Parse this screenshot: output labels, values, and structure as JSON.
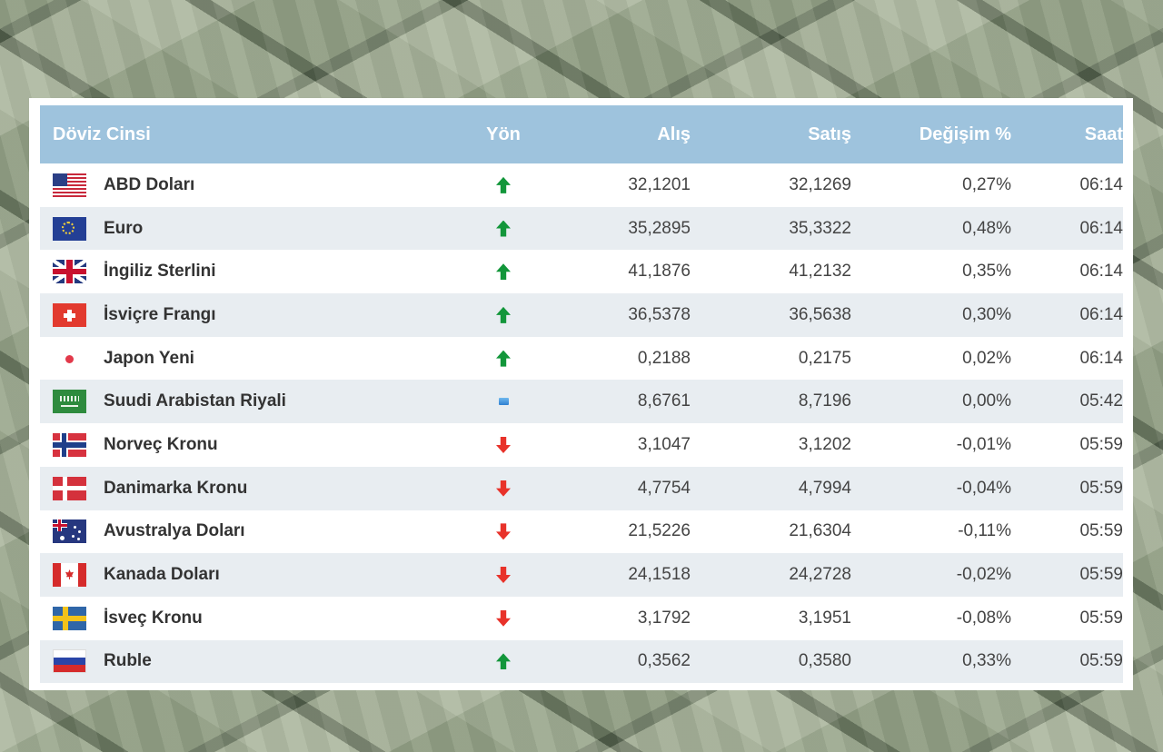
{
  "table": {
    "headers": {
      "currency": "Döviz Cinsi",
      "direction": "Yön",
      "buy": "Alış",
      "sell": "Satış",
      "change": "Değişim %",
      "time": "Saat"
    },
    "rows": [
      {
        "flag": "us-flag-icon",
        "name": "ABD Doları",
        "direction": "up",
        "buy": "32,1201",
        "sell": "32,1269",
        "change": "0,27%",
        "time": "06:14"
      },
      {
        "flag": "eu-flag-icon",
        "name": "Euro",
        "direction": "up",
        "buy": "35,2895",
        "sell": "35,3322",
        "change": "0,48%",
        "time": "06:14"
      },
      {
        "flag": "gb-flag-icon",
        "name": "İngiliz Sterlini",
        "direction": "up",
        "buy": "41,1876",
        "sell": "41,2132",
        "change": "0,35%",
        "time": "06:14"
      },
      {
        "flag": "ch-flag-icon",
        "name": "İsviçre Frangı",
        "direction": "up",
        "buy": "36,5378",
        "sell": "36,5638",
        "change": "0,30%",
        "time": "06:14"
      },
      {
        "flag": "jp-flag-icon",
        "name": "Japon Yeni",
        "direction": "up",
        "buy": "0,2188",
        "sell": "0,2175",
        "change": "0,02%",
        "time": "06:14"
      },
      {
        "flag": "sa-flag-icon",
        "name": "Suudi Arabistan Riyali",
        "direction": "flat",
        "buy": "8,6761",
        "sell": "8,7196",
        "change": "0,00%",
        "time": "05:42"
      },
      {
        "flag": "no-flag-icon",
        "name": "Norveç Kronu",
        "direction": "down",
        "buy": "3,1047",
        "sell": "3,1202",
        "change": "-0,01%",
        "time": "05:59"
      },
      {
        "flag": "dk-flag-icon",
        "name": "Danimarka Kronu",
        "direction": "down",
        "buy": "4,7754",
        "sell": "4,7994",
        "change": "-0,04%",
        "time": "05:59"
      },
      {
        "flag": "au-flag-icon",
        "name": "Avustralya Doları",
        "direction": "down",
        "buy": "21,5226",
        "sell": "21,6304",
        "change": "-0,11%",
        "time": "05:59"
      },
      {
        "flag": "ca-flag-icon",
        "name": "Kanada Doları",
        "direction": "down",
        "buy": "24,1518",
        "sell": "24,2728",
        "change": "-0,02%",
        "time": "05:59"
      },
      {
        "flag": "se-flag-icon",
        "name": "İsveç Kronu",
        "direction": "down",
        "buy": "3,1792",
        "sell": "3,1951",
        "change": "-0,08%",
        "time": "05:59"
      },
      {
        "flag": "ru-flag-icon",
        "name": "Ruble",
        "direction": "up",
        "buy": "0,3562",
        "sell": "0,3580",
        "change": "0,33%",
        "time": "05:59"
      }
    ]
  },
  "colors": {
    "header_bg": "#9ec3dd",
    "alt_row_bg": "#e8edf1",
    "up": "#12963a",
    "down": "#e8322a",
    "flat": "#2f7fd1"
  }
}
